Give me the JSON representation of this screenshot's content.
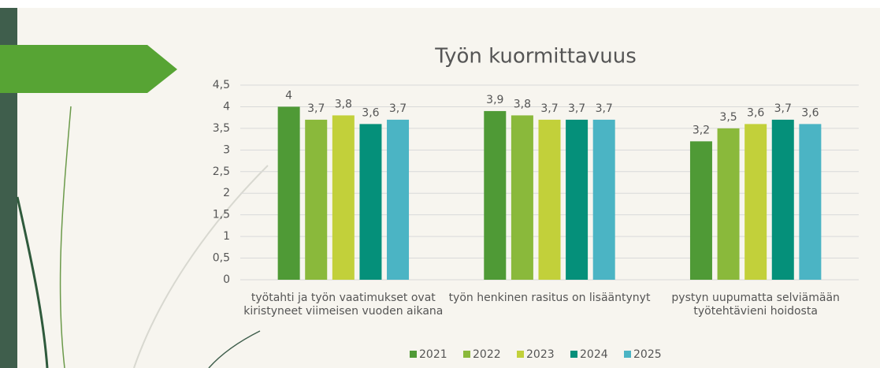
{
  "chart_data": {
    "type": "bar",
    "title": "Työn kuormittavuus",
    "categories": [
      "työtahti ja työn vaatimukset ovat kiristyneet viimeisen vuoden aikana",
      "työn henkinen rasitus on lisääntynyt",
      "pystyn uupumatta selviämään työtehtävieni hoidosta"
    ],
    "series": [
      {
        "name": "2021",
        "color": "#4f9a36",
        "values": [
          4,
          3.9,
          3.2
        ],
        "value_labels": [
          "4",
          "3,9",
          "3,2"
        ]
      },
      {
        "name": "2022",
        "color": "#8ab93b",
        "values": [
          3.7,
          3.8,
          3.5
        ],
        "value_labels": [
          "3,7",
          "3,8",
          "3,5"
        ]
      },
      {
        "name": "2023",
        "color": "#c2d03a",
        "values": [
          3.8,
          3.7,
          3.6
        ],
        "value_labels": [
          "3,8",
          "3,7",
          "3,6"
        ]
      },
      {
        "name": "2024",
        "color": "#05907a",
        "values": [
          3.6,
          3.7,
          3.7
        ],
        "value_labels": [
          "3,6",
          "3,7",
          "3,7"
        ]
      },
      {
        "name": "2025",
        "color": "#4bb4c4",
        "values": [
          3.7,
          3.7,
          3.6
        ],
        "value_labels": [
          "3,7",
          "3,7",
          "3,6"
        ]
      }
    ],
    "ylim": [
      0,
      4.5
    ],
    "yticks": [
      0,
      {
        "value": 0.5,
        "label": "0,5"
      },
      1,
      {
        "value": 1.5,
        "label": "1,5"
      },
      2,
      {
        "value": 2.5,
        "label": "2,5"
      },
      3,
      {
        "value": 3.5,
        "label": "3,5"
      },
      4,
      {
        "value": 4.5,
        "label": "4,5"
      }
    ],
    "grid": true,
    "legend": "bottom"
  }
}
